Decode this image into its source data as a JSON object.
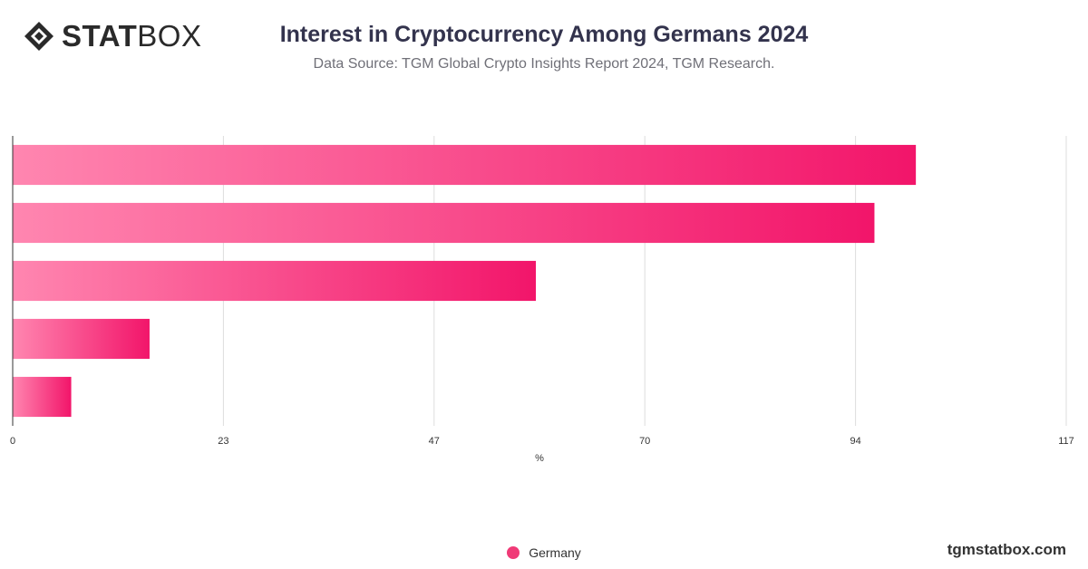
{
  "header": {
    "logo_bold": "STAT",
    "logo_light": "BOX",
    "title": "Interest in Cryptocurrency Among Germans 2024",
    "subtitle": "Data Source: TGM Global Crypto Insights Report 2024, TGM Research."
  },
  "footer": {
    "brand": "tgmstatbox.com"
  },
  "colors": {
    "bar_start": "#ff86b0",
    "bar_end": "#f2156a",
    "grid": "#dddddd",
    "axis": "#333333",
    "text": "#333333"
  },
  "icons": {
    "logo": "diamond-logo-icon",
    "legend": "circle-marker-icon"
  },
  "chart_data": {
    "type": "bar",
    "orientation": "horizontal",
    "categories": [
      "",
      "",
      "",
      "",
      ""
    ],
    "series": [
      {
        "name": "Germany",
        "values": [
          100.3,
          95.7,
          58.1,
          15.2,
          6.5
        ]
      }
    ],
    "xlabel": "%",
    "xlim": [
      0,
      117
    ],
    "xticks": [
      "0",
      "23",
      "47",
      "70",
      "94",
      "117"
    ],
    "xtick_values": [
      0,
      23.4,
      46.8,
      70.2,
      93.6,
      117
    ],
    "grid": true,
    "legend": "bottom-center"
  }
}
